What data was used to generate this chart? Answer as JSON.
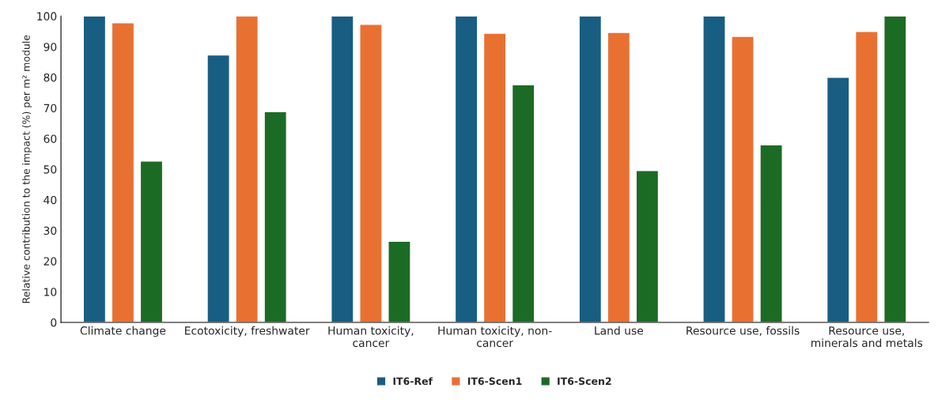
{
  "chart_data": {
    "type": "bar",
    "ylabel": "Relative contribution to the impact (%) per m² module",
    "categories": [
      "Climate change",
      "Ecotoxicity, freshwater",
      "Human toxicity,\ncancer",
      "Human toxicity, non-\ncancer",
      "Land use",
      "Resource use, fossils",
      "Resource use,\nminerals and metals"
    ],
    "series": [
      {
        "name": "IT6-Ref",
        "color": "#175e82",
        "values": [
          100,
          87.3,
          100,
          100,
          100,
          100,
          80.0
        ]
      },
      {
        "name": "IT6-Scen1",
        "color": "#e87132",
        "values": [
          97.8,
          100,
          97.3,
          94.4,
          94.7,
          93.4,
          95.0
        ]
      },
      {
        "name": "IT6-Scen2",
        "color": "#1c6b24",
        "values": [
          52.7,
          68.8,
          26.5,
          77.6,
          49.6,
          58.0,
          100
        ]
      }
    ],
    "ylim": [
      0,
      100
    ],
    "yticks": [
      0,
      10,
      20,
      30,
      40,
      50,
      60,
      70,
      80,
      90,
      100
    ],
    "grid": false,
    "legend": "bottom"
  }
}
